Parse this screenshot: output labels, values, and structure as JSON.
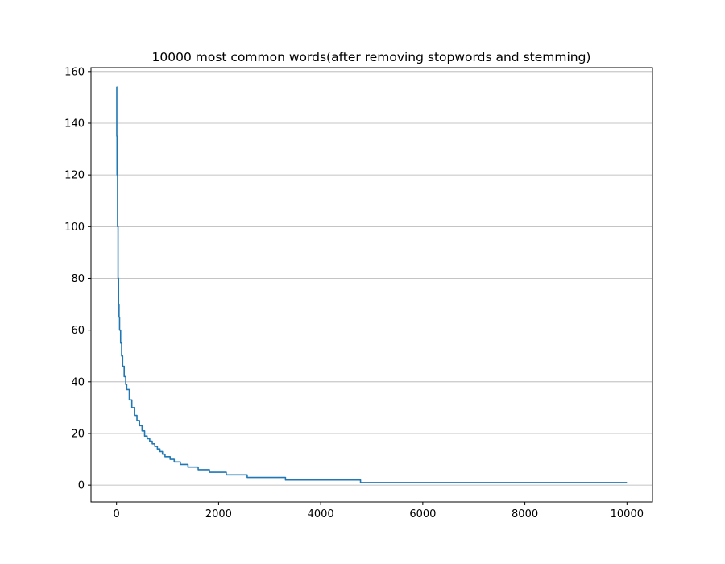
{
  "chart_data": {
    "type": "line",
    "title": "10000 most common words(after removing stopwords and stemming)",
    "xlabel": "",
    "ylabel": "",
    "xlim": [
      -500,
      10500
    ],
    "ylim": [
      -6.5,
      161.5
    ],
    "x_ticks": [
      0,
      2000,
      4000,
      6000,
      8000,
      10000
    ],
    "x_tick_labels": [
      "0",
      "2000",
      "4000",
      "6000",
      "8000",
      "10000"
    ],
    "y_ticks": [
      0,
      20,
      40,
      60,
      80,
      100,
      120,
      140,
      160
    ],
    "y_tick_labels": [
      "0",
      "20",
      "40",
      "60",
      "80",
      "100",
      "120",
      "140",
      "160"
    ],
    "grid": "horizontal",
    "legend": "none",
    "series": [
      {
        "color": "#1f77b4",
        "points": [
          [
            0,
            154
          ],
          [
            5,
            135
          ],
          [
            10,
            120
          ],
          [
            20,
            100
          ],
          [
            30,
            80
          ],
          [
            40,
            70
          ],
          [
            50,
            65
          ],
          [
            60,
            60
          ],
          [
            80,
            55
          ],
          [
            100,
            50
          ],
          [
            120,
            46
          ],
          [
            150,
            42
          ],
          [
            180,
            39
          ],
          [
            200,
            37
          ],
          [
            250,
            33
          ],
          [
            300,
            30
          ],
          [
            350,
            27
          ],
          [
            400,
            25
          ],
          [
            450,
            23
          ],
          [
            500,
            21
          ],
          [
            550,
            19
          ],
          [
            600,
            18
          ],
          [
            650,
            17
          ],
          [
            700,
            16
          ],
          [
            750,
            15
          ],
          [
            800,
            14
          ],
          [
            850,
            13
          ],
          [
            900,
            12
          ],
          [
            950,
            11
          ],
          [
            1050,
            10
          ],
          [
            1130,
            9
          ],
          [
            1250,
            8
          ],
          [
            1400,
            7
          ],
          [
            1600,
            6
          ],
          [
            1820,
            5
          ],
          [
            2150,
            4
          ],
          [
            2560,
            3
          ],
          [
            3310,
            2
          ],
          [
            4780,
            1
          ],
          [
            10000,
            1
          ]
        ]
      }
    ]
  }
}
